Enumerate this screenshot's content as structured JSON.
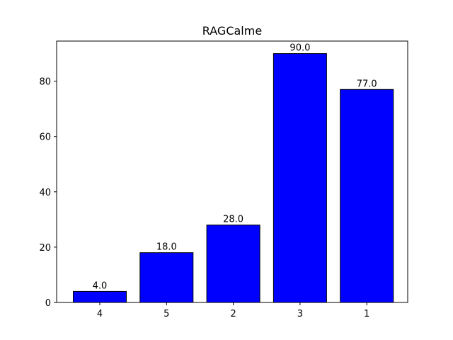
{
  "chart_data": {
    "type": "bar",
    "title": "RAGCalme",
    "xlabel": "",
    "ylabel": "",
    "categories": [
      "4",
      "5",
      "2",
      "3",
      "1"
    ],
    "values": [
      4.0,
      18.0,
      28.0,
      90.0,
      77.0
    ],
    "data_labels": [
      "4.0",
      "18.0",
      "28.0",
      "90.0",
      "77.0"
    ],
    "ylim": [
      0,
      94.5
    ],
    "yticks": [
      0,
      20,
      40,
      60,
      80
    ],
    "ytick_labels": [
      "0",
      "20",
      "40",
      "60",
      "80"
    ],
    "bar_color": "#0000ff",
    "edge_color": "#000000",
    "grid": false,
    "legend": "none"
  }
}
